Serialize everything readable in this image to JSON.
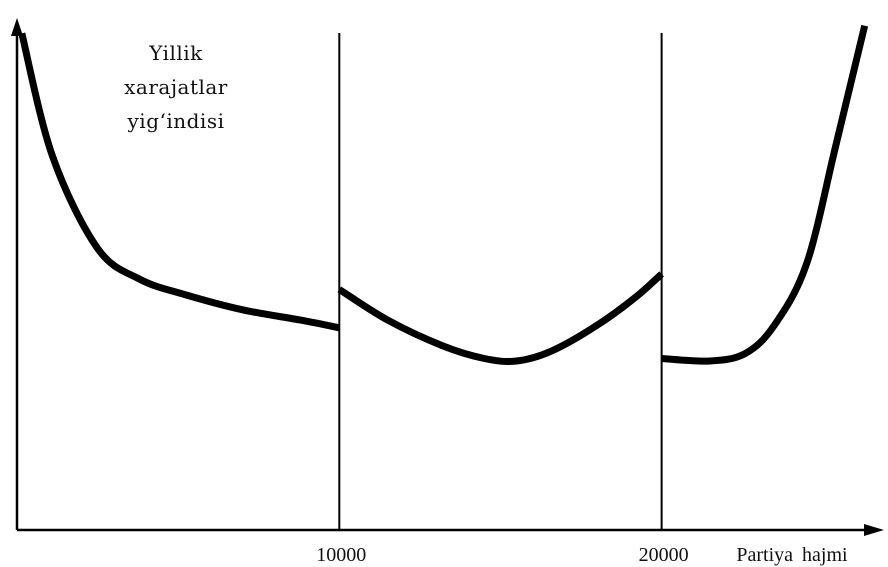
{
  "chart_data": {
    "type": "line",
    "title": "",
    "ylabel_lines": [
      "Yillik",
      "xarajatlar",
      "yig‘indisi"
    ],
    "xlabel": "Partiya hajmi",
    "x_ticks": [
      {
        "value": 10000,
        "label": "10000"
      },
      {
        "value": 20000,
        "label": "20000"
      }
    ],
    "xlim": [
      0,
      26900
    ],
    "ylim": [
      0,
      100
    ],
    "grid": false,
    "boundaries": [
      10000,
      20000
    ],
    "colors": {
      "curve": "#000000",
      "axis": "#000000"
    },
    "series": [
      {
        "segment": "1",
        "points": [
          [
            150,
            97
          ],
          [
            1100,
            73
          ],
          [
            2500,
            55
          ],
          [
            3800,
            49
          ],
          [
            5200,
            46
          ],
          [
            7000,
            43
          ],
          [
            8800,
            41
          ],
          [
            10000,
            39.5
          ]
        ]
      },
      {
        "segment": "2",
        "points": [
          [
            10000,
            47
          ],
          [
            11500,
            41
          ],
          [
            13200,
            36
          ],
          [
            14500,
            33.5
          ],
          [
            15500,
            33
          ],
          [
            16600,
            35
          ],
          [
            18000,
            40
          ],
          [
            19200,
            45.5
          ],
          [
            20000,
            50
          ]
        ]
      },
      {
        "segment": "3",
        "points": [
          [
            20000,
            33.5
          ],
          [
            21500,
            33
          ],
          [
            22600,
            34.5
          ],
          [
            23500,
            40
          ],
          [
            24500,
            52
          ],
          [
            25400,
            75
          ],
          [
            26300,
            98.5
          ]
        ]
      }
    ]
  }
}
